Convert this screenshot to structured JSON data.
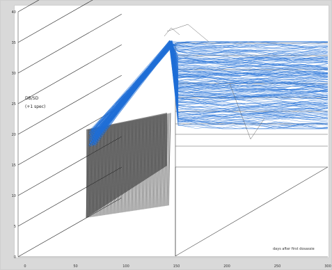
{
  "chart_data": {
    "type": "line",
    "title": "",
    "ylabel": "DB/SD",
    "ylabel_sub": "(+1 spec)",
    "xlabel": "days after first dosassie",
    "y_ticks": [
      "0",
      "5",
      "10",
      "15",
      "20",
      "25",
      "30",
      "35",
      "40"
    ],
    "x_ticks": [
      "0",
      "50",
      "100",
      "150",
      "200",
      "250",
      "300"
    ],
    "ylim": [
      0,
      40
    ],
    "xlim": [
      0,
      300
    ],
    "projection": "3d-perspective",
    "series_color": "#1f6fd6",
    "shadow_color": "#333333",
    "n_series": 200,
    "trend": [
      {
        "day": 65,
        "value": 20
      },
      {
        "day": 143,
        "value": 37
      },
      {
        "day": 300,
        "value": 30
      }
    ]
  }
}
